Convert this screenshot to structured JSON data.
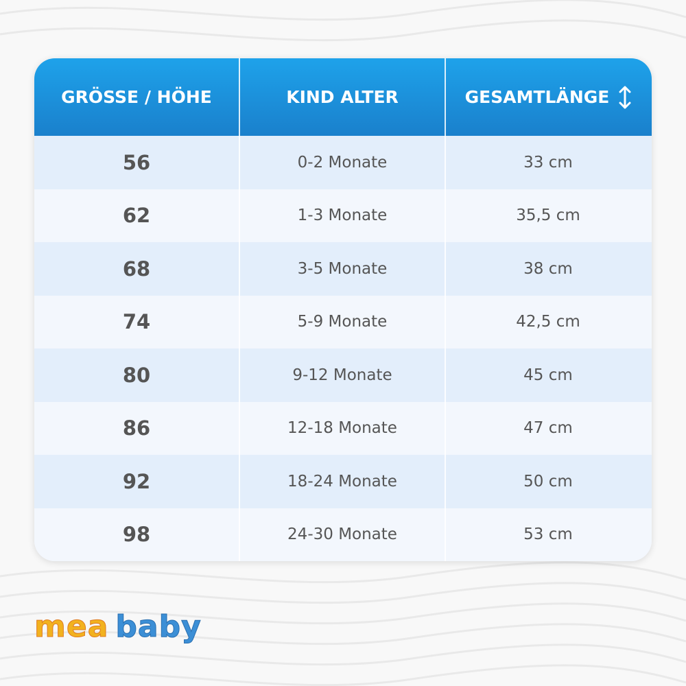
{
  "table": {
    "headers": [
      "GRÖSSE / HÖHE",
      "KIND ALTER",
      "GESAMTLÄNGE"
    ],
    "rows": [
      [
        "56",
        "0-2 Monate",
        "33 cm"
      ],
      [
        "62",
        "1-3 Monate",
        "35,5 cm"
      ],
      [
        "68",
        "3-5 Monate",
        "38 cm"
      ],
      [
        "74",
        "5-9 Monate",
        "42,5 cm"
      ],
      [
        "80",
        "9-12 Monate",
        "45 cm"
      ],
      [
        "86",
        "12-18 Monate",
        "47 cm"
      ],
      [
        "92",
        "18-24 Monate",
        "50 cm"
      ],
      [
        "98",
        "24-30 Monate",
        "53 cm"
      ]
    ]
  },
  "logo": {
    "first": "mea",
    "second": "baby"
  }
}
